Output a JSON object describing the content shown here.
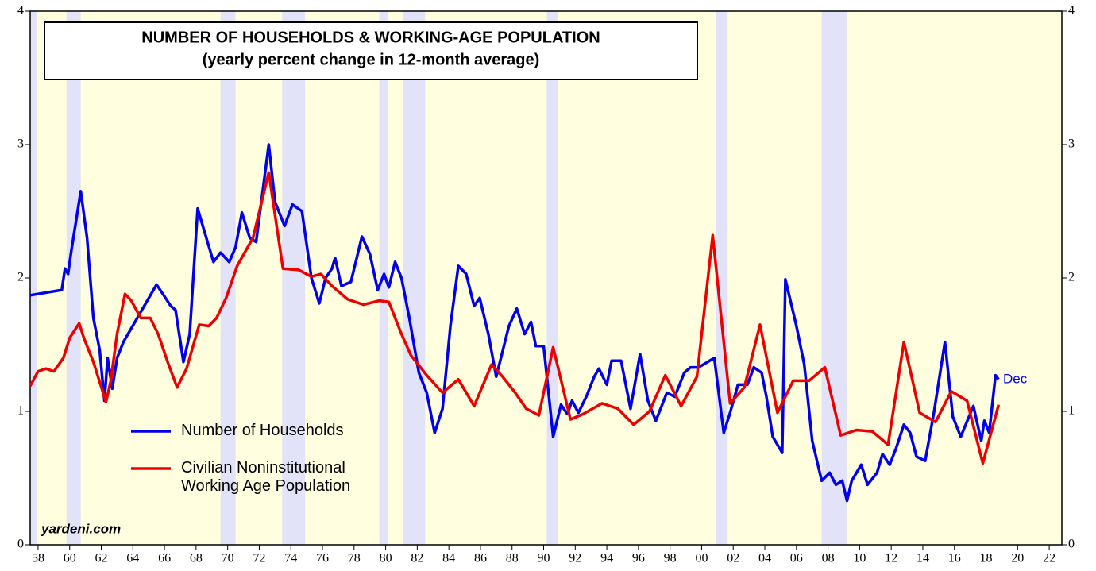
{
  "chart_data": {
    "type": "line",
    "title": "NUMBER OF HOUSEHOLDS & WORKING-AGE POPULATION",
    "subtitle": "(yearly percent change in 12-month average)",
    "annotations": [
      "yardeni.com",
      "Dec"
    ],
    "xlim": [
      1957.5,
      2022.8
    ],
    "ylim": [
      0,
      4
    ],
    "y2lim": [
      0,
      4
    ],
    "yticks": [
      0,
      1,
      2,
      3,
      4
    ],
    "y2ticks": [
      0,
      1,
      2,
      3,
      4
    ],
    "xticks": [
      {
        "value": 1958,
        "label": "58"
      },
      {
        "value": 1960,
        "label": "60"
      },
      {
        "value": 1962,
        "label": "62"
      },
      {
        "value": 1964,
        "label": "64"
      },
      {
        "value": 1966,
        "label": "66"
      },
      {
        "value": 1968,
        "label": "68"
      },
      {
        "value": 1970,
        "label": "70"
      },
      {
        "value": 1972,
        "label": "72"
      },
      {
        "value": 1974,
        "label": "74"
      },
      {
        "value": 1976,
        "label": "76"
      },
      {
        "value": 1978,
        "label": "78"
      },
      {
        "value": 1980,
        "label": "80"
      },
      {
        "value": 1982,
        "label": "82"
      },
      {
        "value": 1984,
        "label": "84"
      },
      {
        "value": 1986,
        "label": "86"
      },
      {
        "value": 1988,
        "label": "88"
      },
      {
        "value": 1990,
        "label": "90"
      },
      {
        "value": 1992,
        "label": "92"
      },
      {
        "value": 1994,
        "label": "94"
      },
      {
        "value": 1996,
        "label": "96"
      },
      {
        "value": 1998,
        "label": "98"
      },
      {
        "value": 2000,
        "label": "00"
      },
      {
        "value": 2002,
        "label": "02"
      },
      {
        "value": 2004,
        "label": "04"
      },
      {
        "value": 2006,
        "label": "06"
      },
      {
        "value": 2008,
        "label": "08"
      },
      {
        "value": 2010,
        "label": "10"
      },
      {
        "value": 2012,
        "label": "12"
      },
      {
        "value": 2014,
        "label": "14"
      },
      {
        "value": 2016,
        "label": "16"
      },
      {
        "value": 2018,
        "label": "18"
      },
      {
        "value": 2020,
        "label": "20"
      },
      {
        "value": 2022,
        "label": "22"
      }
    ],
    "recessions": [
      [
        1957.5,
        1957.95
      ],
      [
        1959.8,
        1960.7
      ],
      [
        1969.55,
        1970.5
      ],
      [
        1973.45,
        1974.9
      ],
      [
        1979.6,
        1980.15
      ],
      [
        1981.1,
        1982.5
      ],
      [
        1990.2,
        1990.9
      ],
      [
        2000.9,
        2001.65
      ],
      [
        2007.6,
        2009.2
      ]
    ],
    "background": "#ffffe0",
    "recession_color": "#e2e2f8",
    "series": [
      {
        "name": "Number of Households",
        "color": "#0000ee",
        "x": [
          1957.5,
          1959.5,
          1959.7,
          1959.9,
          1960.1,
          1960.7,
          1961.1,
          1961.5,
          1961.9,
          1962.2,
          1962.4,
          1962.7,
          1963.0,
          1963.4,
          1965.5,
          1965.9,
          1966.4,
          1966.7,
          1967.2,
          1967.6,
          1968.1,
          1968.5,
          1969.1,
          1969.55,
          1970.1,
          1970.5,
          1970.9,
          1971.4,
          1971.8,
          1972.6,
          1973.0,
          1973.6,
          1974.1,
          1974.7,
          1975.3,
          1975.8,
          1976.2,
          1976.6,
          1976.8,
          1977.2,
          1977.8,
          1978.5,
          1979.0,
          1979.5,
          1979.9,
          1980.2,
          1980.6,
          1981.0,
          1981.5,
          1982.1,
          1982.6,
          1983.1,
          1983.6,
          1984.1,
          1984.6,
          1985.1,
          1985.6,
          1985.95,
          1986.5,
          1987.0,
          1987.8,
          1988.3,
          1988.8,
          1989.2,
          1989.5,
          1990.0,
          1990.6,
          1991.1,
          1991.5,
          1991.8,
          1992.2,
          1992.7,
          1993.2,
          1993.5,
          1994.0,
          1994.3,
          1994.9,
          1995.5,
          1996.1,
          1996.6,
          1997.1,
          1997.8,
          1998.3,
          1998.9,
          1999.3,
          1999.8,
          2000.8,
          2001.4,
          2001.8,
          2002.3,
          2002.9,
          2003.3,
          2003.8,
          2004.1,
          2004.5,
          2005.1,
          2005.3,
          2006.0,
          2006.5,
          2007.0,
          2007.6,
          2008.1,
          2008.5,
          2008.9,
          2009.2,
          2009.5,
          2010.1,
          2010.5,
          2011.1,
          2011.45,
          2011.9,
          2012.3,
          2012.8,
          2013.2,
          2013.6,
          2014.15,
          2014.7,
          2015.4,
          2015.9,
          2016.4,
          2017.2,
          2017.7,
          2017.9,
          2018.2,
          2018.6,
          2018.8
        ],
        "values": [
          1.87,
          1.91,
          2.07,
          2.03,
          2.2,
          2.65,
          2.3,
          1.7,
          1.46,
          1.08,
          1.4,
          1.17,
          1.4,
          1.52,
          1.95,
          1.88,
          1.79,
          1.76,
          1.37,
          1.58,
          2.52,
          2.36,
          2.12,
          2.19,
          2.12,
          2.23,
          2.49,
          2.3,
          2.27,
          3.0,
          2.57,
          2.39,
          2.55,
          2.5,
          2.0,
          1.81,
          2.0,
          2.07,
          2.15,
          1.94,
          1.97,
          2.31,
          2.18,
          1.91,
          2.03,
          1.93,
          2.12,
          2.0,
          1.7,
          1.29,
          1.14,
          0.84,
          1.02,
          1.64,
          2.09,
          2.03,
          1.79,
          1.85,
          1.58,
          1.26,
          1.64,
          1.77,
          1.58,
          1.67,
          1.49,
          1.49,
          0.81,
          1.05,
          0.98,
          1.08,
          0.99,
          1.11,
          1.26,
          1.32,
          1.2,
          1.38,
          1.38,
          1.02,
          1.43,
          1.08,
          0.93,
          1.14,
          1.11,
          1.29,
          1.33,
          1.33,
          1.4,
          0.84,
          0.99,
          1.2,
          1.2,
          1.33,
          1.29,
          1.11,
          0.81,
          0.69,
          1.99,
          1.64,
          1.35,
          0.78,
          0.48,
          0.54,
          0.45,
          0.48,
          0.33,
          0.48,
          0.6,
          0.45,
          0.54,
          0.68,
          0.6,
          0.72,
          0.9,
          0.84,
          0.66,
          0.63,
          0.99,
          1.52,
          0.96,
          0.81,
          1.04,
          0.78,
          0.93,
          0.84,
          1.27,
          1.24
        ]
      },
      {
        "name": "Civilian Noninstitutional Working Age Population",
        "color": "#ee0000",
        "x": [
          1957.5,
          1958.0,
          1958.5,
          1959.0,
          1959.6,
          1960.0,
          1960.6,
          1960.9,
          1961.5,
          1962.3,
          1962.6,
          1963.0,
          1963.5,
          1963.9,
          1964.5,
          1965.1,
          1965.6,
          1966.2,
          1966.8,
          1967.4,
          1968.2,
          1968.8,
          1969.3,
          1969.9,
          1970.6,
          1971.6,
          1972.6,
          1973.5,
          1974.5,
          1975.3,
          1975.9,
          1976.6,
          1977.6,
          1978.6,
          1979.6,
          1980.2,
          1981.0,
          1981.6,
          1982.6,
          1983.6,
          1984.6,
          1985.6,
          1986.7,
          1987.4,
          1988.2,
          1988.9,
          1989.7,
          1990.6,
          1991.7,
          1992.5,
          1993.7,
          1994.7,
          1995.7,
          1996.7,
          1997.7,
          1998.7,
          1999.7,
          2000.7,
          2001.8,
          2002.7,
          2003.7,
          2004.8,
          2005.8,
          2006.8,
          2007.8,
          2008.8,
          2009.8,
          2010.8,
          2011.8,
          2012.8,
          2013.8,
          2014.8,
          2015.8,
          2016.8,
          2017.8,
          2018.8
        ],
        "values": [
          1.19,
          1.3,
          1.32,
          1.3,
          1.4,
          1.55,
          1.66,
          1.55,
          1.37,
          1.07,
          1.23,
          1.58,
          1.88,
          1.83,
          1.7,
          1.7,
          1.58,
          1.37,
          1.18,
          1.32,
          1.65,
          1.64,
          1.7,
          1.85,
          2.09,
          2.3,
          2.79,
          2.07,
          2.06,
          2.01,
          2.03,
          1.94,
          1.84,
          1.8,
          1.83,
          1.82,
          1.58,
          1.42,
          1.27,
          1.14,
          1.24,
          1.04,
          1.35,
          1.26,
          1.14,
          1.02,
          0.97,
          1.48,
          0.94,
          0.98,
          1.06,
          1.02,
          0.9,
          1.0,
          1.27,
          1.04,
          1.26,
          2.32,
          1.06,
          1.18,
          1.65,
          0.99,
          1.23,
          1.23,
          1.33,
          0.82,
          0.86,
          0.85,
          0.75,
          1.52,
          0.99,
          0.92,
          1.15,
          1.08,
          0.61,
          1.05
        ]
      }
    ]
  }
}
